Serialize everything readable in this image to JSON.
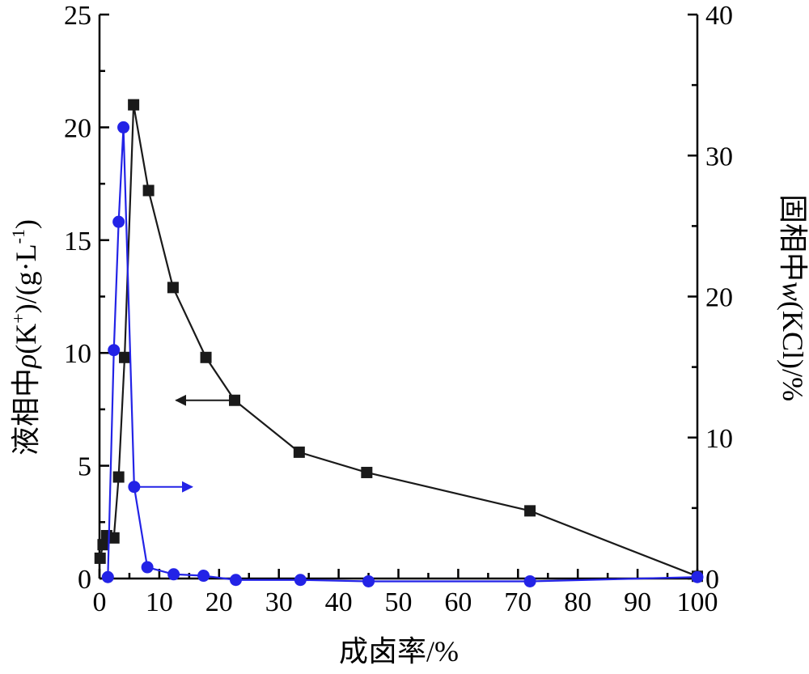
{
  "chart_data": {
    "type": "line",
    "xlabel": "成卤率/%",
    "ylabel_left": {
      "prefix": "液相中",
      "symbol": "ρ",
      "open": "(K",
      "sup1": "+",
      "mid": ")/(g·L",
      "sup2": "-1",
      "close": ")"
    },
    "ylabel_right": {
      "prefix": "固相中",
      "symbol": "w",
      "rest": "(KCl)/%"
    },
    "xlim": [
      0,
      100
    ],
    "ylim_left": [
      0,
      25
    ],
    "ylim_right": [
      0,
      40
    ],
    "x_ticks": [
      0,
      10,
      20,
      30,
      40,
      50,
      60,
      70,
      80,
      90,
      100
    ],
    "y_left_ticks": [
      0,
      5,
      10,
      15,
      20,
      25
    ],
    "y_right_ticks": [
      0,
      10,
      20,
      30,
      40
    ],
    "grid": false,
    "series": [
      {
        "axis": "left",
        "marker": "square",
        "color": "#1a1a1a",
        "points": [
          [
            0.1,
            0.9
          ],
          [
            0.6,
            1.5
          ],
          [
            1.2,
            1.9
          ],
          [
            2.4,
            1.8
          ],
          [
            3.2,
            4.5
          ],
          [
            4.2,
            9.8
          ],
          [
            5.7,
            21.0
          ],
          [
            8.2,
            17.2
          ],
          [
            12.3,
            12.9
          ],
          [
            17.8,
            9.8
          ],
          [
            22.6,
            7.9
          ],
          [
            33.4,
            5.6
          ],
          [
            44.7,
            4.7
          ],
          [
            72.0,
            3.0
          ],
          [
            100.0,
            0.1
          ]
        ],
        "arrow": {
          "from": [
            22.5,
            7.9
          ],
          "to": [
            12.8,
            7.9
          ]
        }
      },
      {
        "axis": "right",
        "marker": "circle",
        "color": "#2323e6",
        "points": [
          [
            1.4,
            0.1
          ],
          [
            2.4,
            16.2
          ],
          [
            3.2,
            25.3
          ],
          [
            4.0,
            32.0
          ],
          [
            5.8,
            6.5
          ],
          [
            8.0,
            0.8
          ],
          [
            12.4,
            0.3
          ],
          [
            17.4,
            0.2
          ],
          [
            22.8,
            -0.1
          ],
          [
            33.6,
            -0.1
          ],
          [
            45.0,
            -0.2
          ],
          [
            72.0,
            -0.2
          ],
          [
            100.0,
            0.1
          ]
        ],
        "arrow": {
          "from": [
            6.5,
            6.5
          ],
          "to": [
            15.5,
            6.5
          ]
        }
      }
    ]
  }
}
